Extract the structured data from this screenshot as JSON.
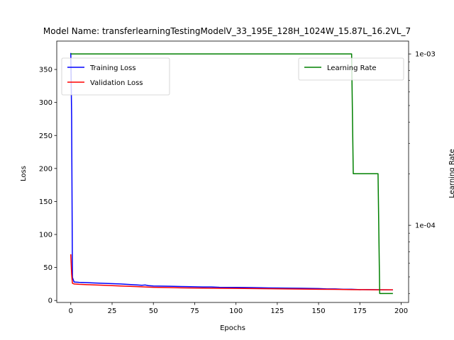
{
  "chart_data": {
    "type": "line",
    "title": "Model Name: transferlearningTestingModelV_33_195E_128H_1024W_15.87L_16.2VL_7",
    "xlabel": "Epochs",
    "ylabel": "Loss",
    "y2label": "Learning Rate",
    "xlim": [
      -8.5,
      204.5
    ],
    "ylim": [
      -3,
      393
    ],
    "y2lim_log10": [
      -4.45,
      -2.925
    ],
    "y2scale": "log",
    "grid": false,
    "xticks": [
      0,
      25,
      50,
      75,
      100,
      125,
      150,
      175,
      200
    ],
    "yticks": [
      0,
      50,
      100,
      150,
      200,
      250,
      300,
      350
    ],
    "y2ticks": [
      {
        "value": 0.001,
        "label": "1e-03"
      },
      {
        "value": 0.0001,
        "label": "1e-04"
      }
    ],
    "legend_left": {
      "placement": "upper-left",
      "entries": [
        "Training Loss",
        "Validation Loss"
      ]
    },
    "legend_right": {
      "placement": "upper-right",
      "entries": [
        "Learning Rate"
      ]
    },
    "series": [
      {
        "name": "Training Loss",
        "color": "#0000ff",
        "axis": "left",
        "x": [
          0,
          0.5,
          1,
          2,
          5,
          10,
          20,
          30,
          40,
          43,
          45,
          47,
          50,
          60,
          70,
          80,
          85,
          90,
          100,
          110,
          120,
          130,
          140,
          150,
          155,
          160,
          165,
          170,
          175,
          180,
          185,
          190,
          195
        ],
        "y": [
          375,
          280,
          35,
          28,
          27.5,
          27,
          26,
          25,
          23.5,
          23,
          23.5,
          22.5,
          22,
          21.5,
          21,
          20.5,
          20.5,
          20,
          19.8,
          19.5,
          19,
          18.8,
          18.5,
          18,
          17.5,
          17.5,
          17,
          17,
          16.5,
          16.5,
          16.3,
          16.2,
          16
        ]
      },
      {
        "name": "Validation Loss",
        "color": "#ff0000",
        "axis": "left",
        "x": [
          0,
          0.5,
          1,
          2,
          5,
          10,
          20,
          30,
          40,
          45,
          50,
          60,
          70,
          80,
          90,
          100,
          110,
          120,
          130,
          140,
          150,
          160,
          170,
          180,
          185,
          190,
          195
        ],
        "y": [
          70,
          40,
          26,
          25,
          24.5,
          24,
          23,
          22,
          21,
          20.5,
          20,
          19.5,
          19,
          18.8,
          18.5,
          18.3,
          18,
          17.8,
          17.5,
          17.3,
          17,
          16.8,
          16.5,
          16.3,
          16.2,
          16.2,
          16.2
        ]
      },
      {
        "name": "Learning Rate",
        "color": "#008000",
        "axis": "right",
        "x": [
          0,
          170,
          171,
          186,
          187,
          195
        ],
        "y": [
          0.001,
          0.001,
          0.0002,
          0.0002,
          4e-05,
          4e-05
        ]
      }
    ]
  }
}
